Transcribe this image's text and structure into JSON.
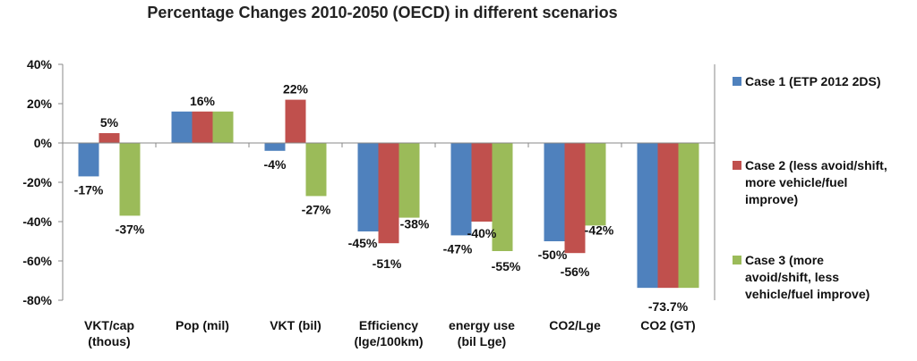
{
  "chart_data": {
    "type": "bar",
    "title": "Percentage Changes 2010-2050 (OECD) in different scenarios",
    "xlabel": "",
    "ylabel": "",
    "ylim": [
      -80,
      40
    ],
    "yticks": [
      40,
      20,
      0,
      -20,
      -40,
      -60,
      -80
    ],
    "ytick_labels": [
      "40%",
      "20%",
      "0%",
      "-20%",
      "-40%",
      "-60%",
      "-80%"
    ],
    "categories": [
      [
        "VKT/cap",
        "(thous)"
      ],
      [
        "Pop (mil)"
      ],
      [
        "VKT (bil)"
      ],
      [
        "Efficiency",
        "(lge/100km)"
      ],
      [
        "energy use",
        "(bil Lge)"
      ],
      [
        "CO2/Lge"
      ],
      [
        "CO2 (GT)"
      ]
    ],
    "series": [
      {
        "name": [
          "Case 1 (ETP 2012 2DS)"
        ],
        "color": "#4f81bd",
        "values": [
          -17,
          16,
          -4,
          -45,
          -47,
          -50,
          -73.7
        ],
        "labels": [
          "-17%",
          "",
          "-4%",
          "-45%",
          "-47%",
          "-50%",
          ""
        ]
      },
      {
        "name": [
          "Case 2 (less avoid/shift,",
          "more vehicle/fuel",
          "improve)"
        ],
        "color": "#c0504d",
        "values": [
          5,
          16,
          22,
          -51,
          -40,
          -56,
          -73.7
        ],
        "labels": [
          "5%",
          "16%",
          "22%",
          "-51%",
          "-40%",
          "-56%",
          "-73.7%"
        ]
      },
      {
        "name": [
          "Case 3 (more",
          "avoid/shift, less",
          "vehicle/fuel improve)"
        ],
        "color": "#9bbb59",
        "values": [
          -37,
          16,
          -27,
          -38,
          -55,
          -42,
          -73.7
        ],
        "labels": [
          "-37%",
          "",
          "-27%",
          "-38%",
          "-55%",
          "-42%",
          ""
        ]
      }
    ],
    "grid": false,
    "legend": "right"
  }
}
